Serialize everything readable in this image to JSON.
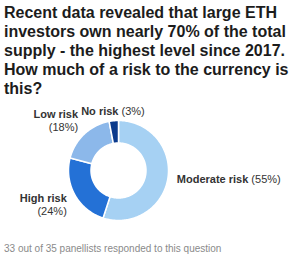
{
  "chart_data": {
    "type": "donut",
    "title": "Recent data revealed that large ETH investors own nearly 70% of the total supply - the highest level since 2017. How much of a risk to the currency is this?",
    "caption": "33 out of 35 panellists responded to this question",
    "categories": [
      "Moderate risk",
      "High risk",
      "Low risk",
      "No risk"
    ],
    "values": [
      55,
      24,
      18,
      3
    ],
    "value_labels": [
      "(55%)",
      "(24%)",
      "(18%)",
      "(3%)"
    ],
    "colors": [
      "#a6d1f3",
      "#2471d6",
      "#8cb8ea",
      "#0b3a8c"
    ],
    "data_labels": true
  }
}
